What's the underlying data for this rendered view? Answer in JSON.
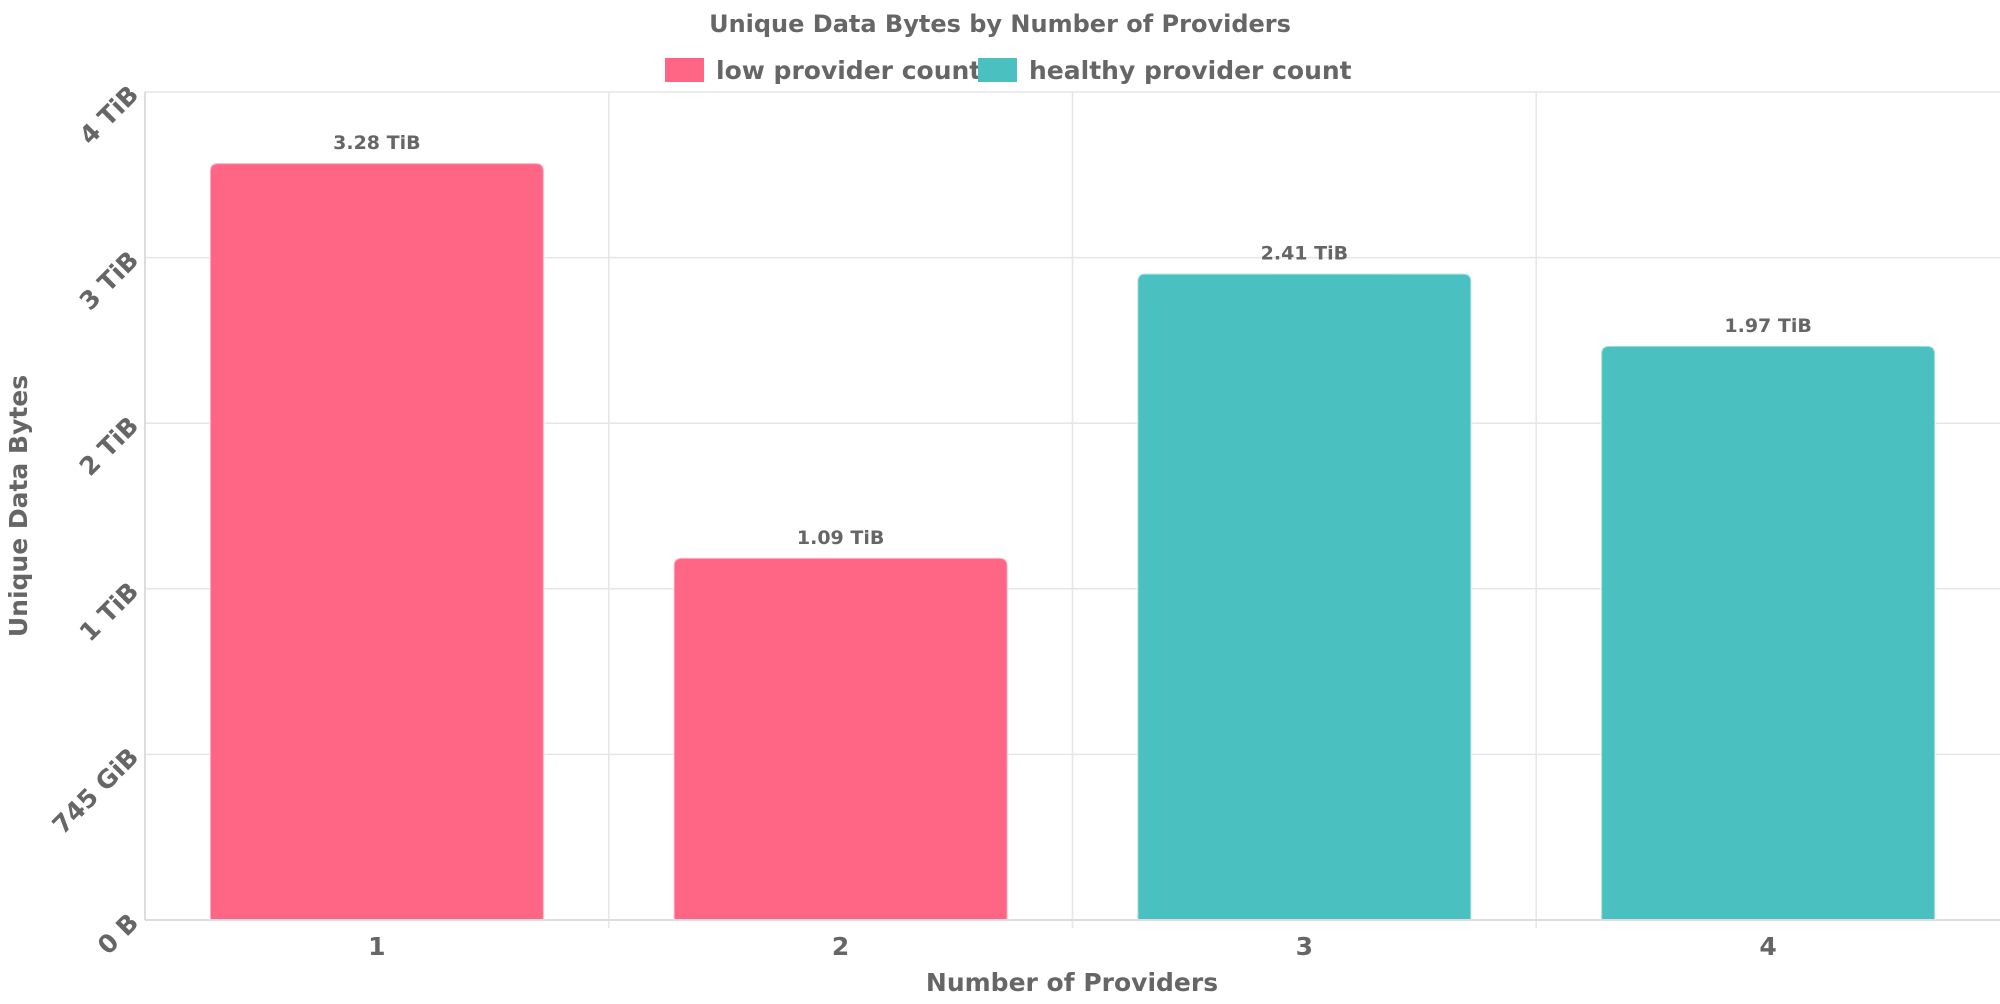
{
  "chart_data": {
    "type": "bar",
    "title": "Unique Data Bytes by Number of Providers",
    "xlabel": "Number of Providers",
    "ylabel": "Unique Data Bytes",
    "categories": [
      "1",
      "2",
      "3",
      "4"
    ],
    "values_tib": [
      3.28,
      1.09,
      2.41,
      1.97
    ],
    "data_labels": [
      "3.28 TiB",
      "1.09 TiB",
      "2.41 TiB",
      "1.97 TiB"
    ],
    "bar_series": [
      "low provider count",
      "low provider count",
      "healthy provider count",
      "healthy provider count"
    ],
    "y_ticks": [
      "0 B",
      "745 GiB",
      "1 TiB",
      "2 TiB",
      "3 TiB",
      "4 TiB"
    ],
    "legend": [
      {
        "name": "low provider count",
        "color": "#ff6685"
      },
      {
        "name": "healthy provider count",
        "color": "#4bc0c0"
      }
    ],
    "legend_position": "top",
    "grid": true,
    "y_scale": "logarithmic"
  }
}
